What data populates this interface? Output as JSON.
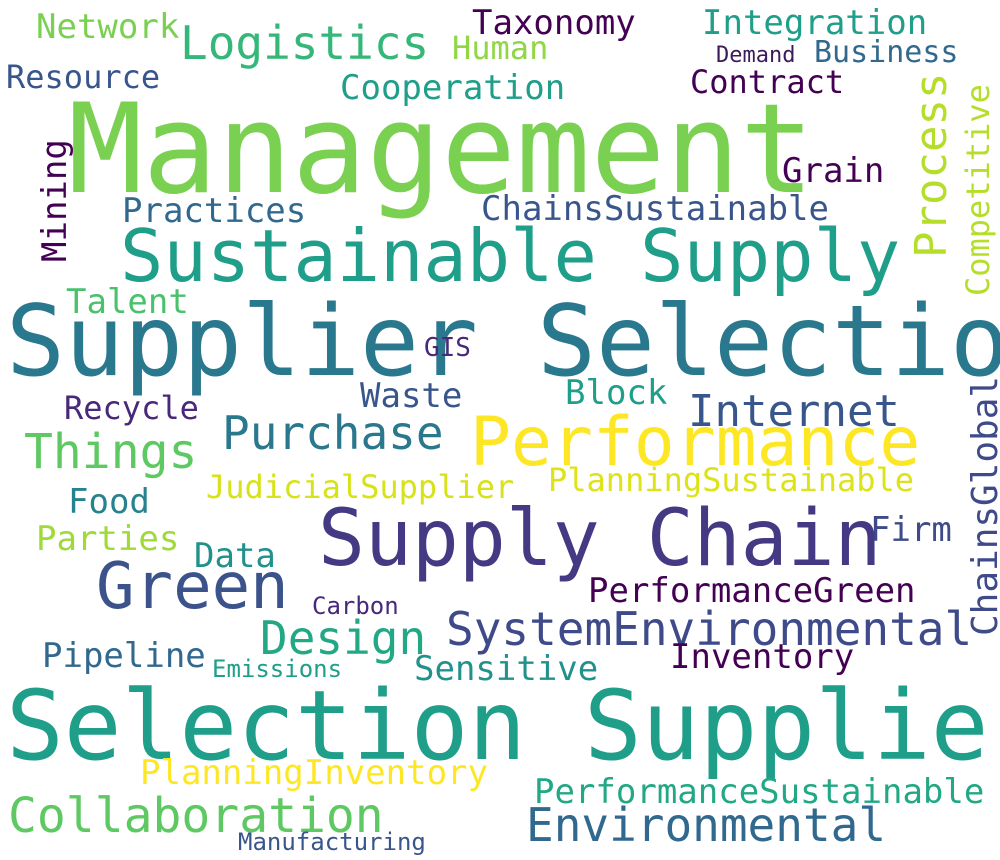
{
  "word_cloud": {
    "words": [
      {
        "text": "Network",
        "color": "#7ad151"
      },
      {
        "text": "Taxonomy",
        "color": "#440154"
      },
      {
        "text": "Integration",
        "color": "#1f9e89"
      },
      {
        "text": "Logistics",
        "color": "#35b779"
      },
      {
        "text": "Human",
        "color": "#8fd744"
      },
      {
        "text": "Demand",
        "color": "#3b1c5a"
      },
      {
        "text": "Business",
        "color": "#31688e"
      },
      {
        "text": "Resource",
        "color": "#39568c"
      },
      {
        "text": "Contract",
        "color": "#440154"
      },
      {
        "text": "Cooperation",
        "color": "#1f9e89"
      },
      {
        "text": "Management",
        "color": "#7ad151"
      },
      {
        "text": "Process",
        "color": "#b5de2b",
        "orientation": "vertical"
      },
      {
        "text": "Competitive",
        "color": "#b5de2b",
        "orientation": "vertical"
      },
      {
        "text": "Grain",
        "color": "#440154"
      },
      {
        "text": "Mining",
        "color": "#440154",
        "orientation": "vertical"
      },
      {
        "text": "Practices",
        "color": "#31688e"
      },
      {
        "text": "ChainsSustainable",
        "color": "#39568c"
      },
      {
        "text": "Sustainable Supply",
        "color": "#1f9e89"
      },
      {
        "text": "Talent",
        "color": "#4ac16d"
      },
      {
        "text": "Supplier Selection",
        "color": "#2a788e"
      },
      {
        "text": "GIS",
        "color": "#482878"
      },
      {
        "text": "Block",
        "color": "#1f9e89"
      },
      {
        "text": "Waste",
        "color": "#39568c"
      },
      {
        "text": "Recycle",
        "color": "#482878"
      },
      {
        "text": "Internet",
        "color": "#39568c"
      },
      {
        "text": "ChainsGlobal",
        "color": "#3e4a89",
        "orientation": "vertical"
      },
      {
        "text": "Purchase",
        "color": "#2a788e"
      },
      {
        "text": "Performance",
        "color": "#fde725"
      },
      {
        "text": "Things",
        "color": "#5ec962"
      },
      {
        "text": "PlanningSustainable",
        "color": "#dde318"
      },
      {
        "text": "JudicialSupplier",
        "color": "#d8e219"
      },
      {
        "text": "Food",
        "color": "#26828e"
      },
      {
        "text": "Firm",
        "color": "#3e4a89"
      },
      {
        "text": "Parties",
        "color": "#a0da39"
      },
      {
        "text": "Supply Chain",
        "color": "#443983"
      },
      {
        "text": "Data",
        "color": "#21918c"
      },
      {
        "text": "Green",
        "color": "#3b528b"
      },
      {
        "text": "PerformanceGreen",
        "color": "#440154"
      },
      {
        "text": "Carbon",
        "color": "#482878"
      },
      {
        "text": "Design",
        "color": "#22a884"
      },
      {
        "text": "SystemEnvironmental",
        "color": "#3e4a89"
      },
      {
        "text": "Pipeline",
        "color": "#31688e"
      },
      {
        "text": "Inventory",
        "color": "#440154"
      },
      {
        "text": "Emissions",
        "color": "#1f9e89"
      },
      {
        "text": "Sensitive",
        "color": "#21918c"
      },
      {
        "text": "Selection Supplier",
        "color": "#1f9e89"
      },
      {
        "text": "PlanningInventory",
        "color": "#fde725"
      },
      {
        "text": "PerformanceSustainable",
        "color": "#22a884"
      },
      {
        "text": "Collaboration",
        "color": "#5ec962"
      },
      {
        "text": "Environmental",
        "color": "#31688e"
      },
      {
        "text": "Manufacturing",
        "color": "#39568c"
      }
    ]
  }
}
